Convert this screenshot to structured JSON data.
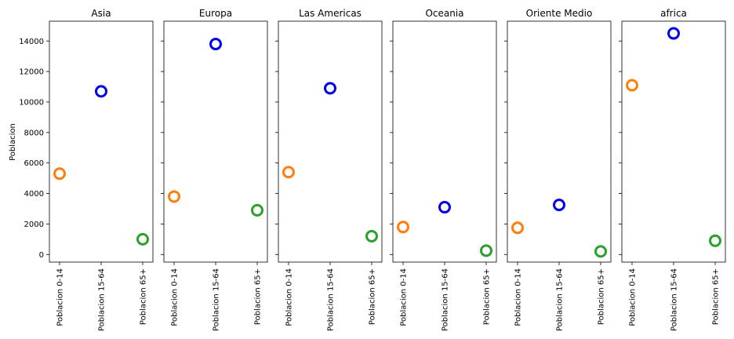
{
  "chart_data": {
    "type": "scatter",
    "ylabel": "Poblacion",
    "ylim": [
      -500,
      15300
    ],
    "yticks": [
      0,
      2000,
      4000,
      6000,
      8000,
      10000,
      12000,
      14000
    ],
    "categories": [
      "Poblacion 0-14",
      "Poblacion 15-64",
      "Poblacion 65+"
    ],
    "point_colors": [
      "#ff7f0e",
      "#0000e6",
      "#2ca02c"
    ],
    "grid": false,
    "legend": "none",
    "panels": [
      {
        "title": "Asia",
        "values": [
          5300,
          10700,
          1000
        ]
      },
      {
        "title": "Europa",
        "values": [
          3800,
          13800,
          2900
        ]
      },
      {
        "title": "Las Americas",
        "values": [
          5400,
          10900,
          1200
        ]
      },
      {
        "title": "Oceania",
        "values": [
          1800,
          3100,
          250
        ]
      },
      {
        "title": "Oriente Medio",
        "values": [
          1750,
          3250,
          200
        ]
      },
      {
        "title": "africa",
        "values": [
          11100,
          14500,
          900
        ]
      }
    ]
  }
}
